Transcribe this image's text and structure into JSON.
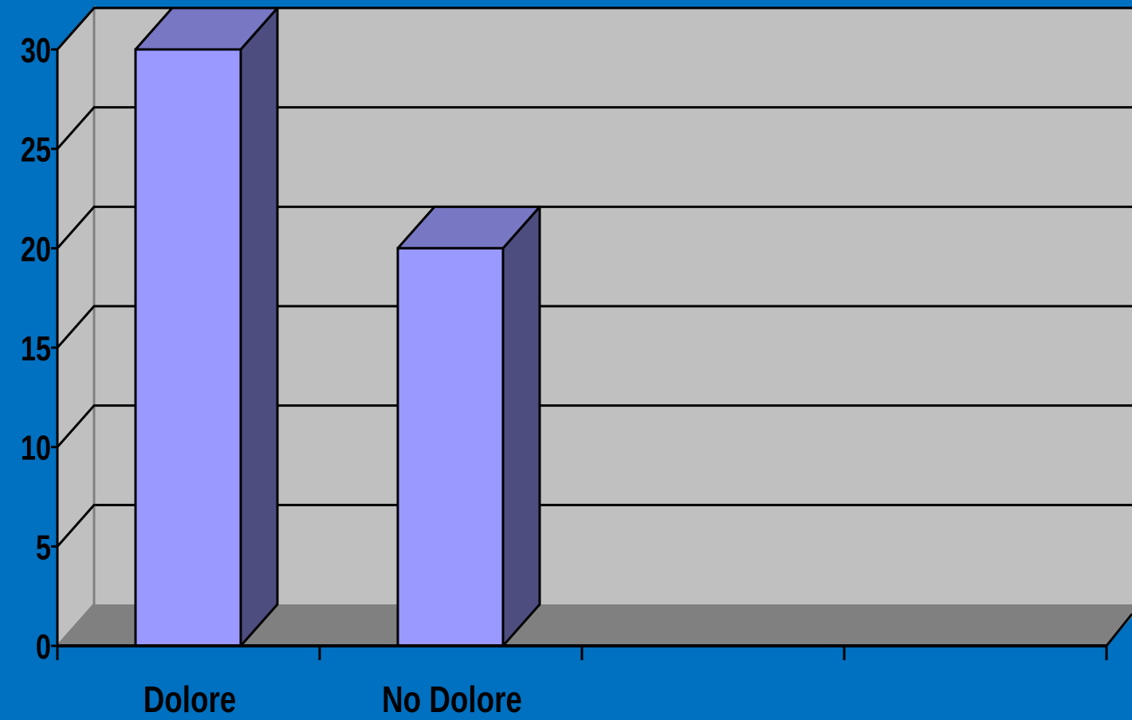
{
  "chart_data": {
    "type": "bar",
    "style": "3d-column",
    "categories": [
      "Dolore",
      "No Dolore",
      "",
      ""
    ],
    "values": [
      30,
      20,
      null,
      null
    ],
    "ylim": [
      0,
      30
    ],
    "yticks": [
      "0",
      "5",
      "10",
      "15",
      "20",
      "25",
      "30"
    ],
    "grid": true,
    "legend": "none"
  },
  "colors": {
    "background": "#0070c0",
    "wall": "#c0c0c0",
    "floor": "#808080",
    "bar_front": "#9999ff",
    "bar_top": "#7777c4",
    "bar_side": "#4d4d80"
  }
}
